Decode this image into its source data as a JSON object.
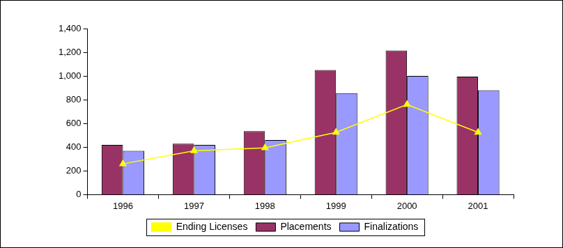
{
  "chart_data": {
    "type": "bar",
    "categories": [
      "1996",
      "1997",
      "1998",
      "1999",
      "2000",
      "2001"
    ],
    "series": [
      {
        "name": "Placements",
        "color": "#993366",
        "values": [
          420,
          430,
          535,
          1050,
          1215,
          995
        ]
      },
      {
        "name": "Finalizations",
        "color": "#9999ff",
        "values": [
          370,
          420,
          460,
          855,
          1000,
          880
        ]
      },
      {
        "name": "Ending Licenses",
        "color": "#ffff00",
        "type": "line",
        "marker": "triangle",
        "values": [
          260,
          370,
          395,
          525,
          760,
          525
        ]
      }
    ],
    "ylim": [
      0,
      1400
    ],
    "yticks": [
      0,
      200,
      400,
      600,
      800,
      {
        "value": 1000,
        "label": "1,000"
      },
      {
        "value": 1200,
        "label": "1,200"
      },
      {
        "value": 1400,
        "label": "1,400"
      }
    ],
    "grid": false,
    "legend": "bottom"
  }
}
